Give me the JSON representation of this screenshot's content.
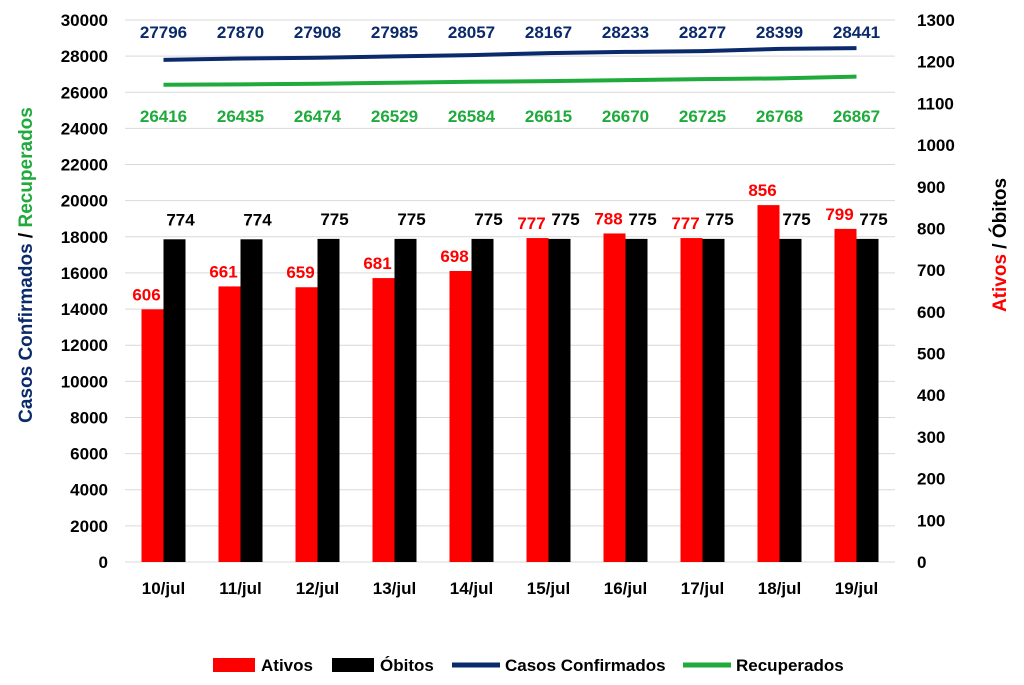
{
  "colors": {
    "ativos": "#ff0000",
    "obitos": "#000000",
    "casos": "#0b2a6b",
    "recuperados": "#1faa3c",
    "grid": "#d9d9d9"
  },
  "chart_data": {
    "type": "bar",
    "categories": [
      "10/jul",
      "11/jul",
      "12/jul",
      "13/jul",
      "14/jul",
      "15/jul",
      "16/jul",
      "17/jul",
      "18/jul",
      "19/jul"
    ],
    "series": [
      {
        "name": "Ativos",
        "type": "bar",
        "axis": "right",
        "values": [
          606,
          661,
          659,
          681,
          698,
          777,
          788,
          777,
          856,
          799
        ]
      },
      {
        "name": "Óbitos",
        "type": "bar",
        "axis": "right",
        "values": [
          774,
          774,
          775,
          775,
          775,
          775,
          775,
          775,
          775,
          775
        ]
      },
      {
        "name": "Casos Confirmados",
        "type": "line",
        "axis": "left",
        "values": [
          27796,
          27870,
          27908,
          27985,
          28057,
          28167,
          28233,
          28277,
          28399,
          28441
        ]
      },
      {
        "name": "Recuperados",
        "type": "line",
        "axis": "left",
        "values": [
          26416,
          26435,
          26474,
          26529,
          26584,
          26615,
          26670,
          26725,
          26768,
          26867
        ]
      }
    ],
    "ylabel_left_part1": "Casos Confirmados",
    "ylabel_left_sep": " / ",
    "ylabel_left_part2": "Recuperados",
    "ylabel_right_part1": "Ativos",
    "ylabel_right_sep": " / ",
    "ylabel_right_part2": "Óbitos",
    "ylim_left": [
      0,
      30000
    ],
    "ylim_right": [
      0,
      1300
    ],
    "left_ticks": [
      0,
      2000,
      4000,
      6000,
      8000,
      10000,
      12000,
      14000,
      16000,
      18000,
      20000,
      22000,
      24000,
      26000,
      28000,
      30000
    ],
    "right_ticks": [
      0,
      100,
      200,
      300,
      400,
      500,
      600,
      700,
      800,
      900,
      1000,
      1100,
      1200,
      1300
    ],
    "grid": true,
    "legend_position": "bottom"
  }
}
